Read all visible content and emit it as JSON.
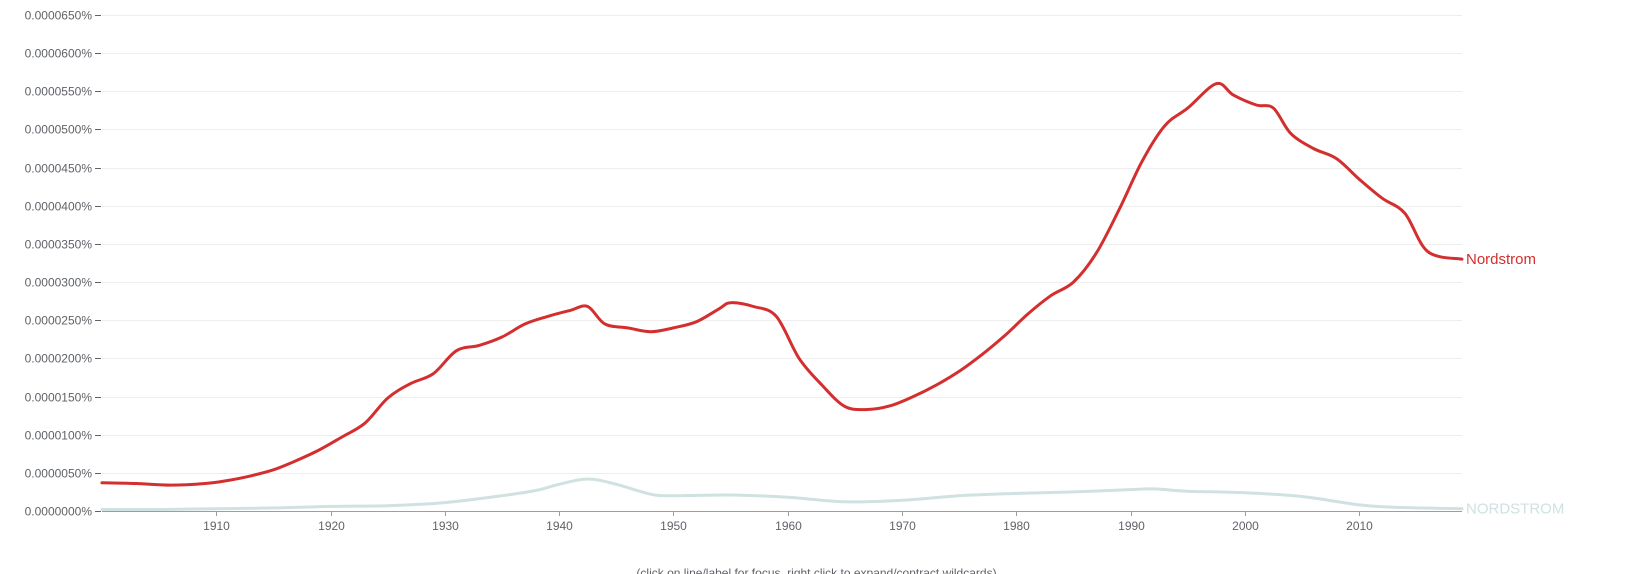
{
  "chart_data": {
    "type": "line",
    "title": "",
    "xlabel": "",
    "ylabel": "",
    "xlim": [
      1900,
      2019
    ],
    "ylim": [
      0,
      6.5e-05
    ],
    "y_ticks": [
      "0.0000000%",
      "0.0000050%",
      "0.0000100%",
      "0.0000150%",
      "0.0000200%",
      "0.0000250%",
      "0.0000300%",
      "0.0000350%",
      "0.0000400%",
      "0.0000450%",
      "0.0000500%",
      "0.0000550%",
      "0.0000600%",
      "0.0000650%"
    ],
    "y_tick_values": [
      0,
      5e-06,
      1e-05,
      1.5e-05,
      2e-05,
      2.5e-05,
      3e-05,
      3.5e-05,
      4e-05,
      4.5e-05,
      5e-05,
      5.5e-05,
      6e-05,
      6.5e-05
    ],
    "x_ticks": [
      "1910",
      "1920",
      "1930",
      "1940",
      "1950",
      "1960",
      "1970",
      "1980",
      "1990",
      "2000",
      "2010"
    ],
    "x_tick_values": [
      1910,
      1920,
      1930,
      1940,
      1950,
      1960,
      1970,
      1980,
      1990,
      2000,
      2010
    ],
    "grid": true,
    "series": [
      {
        "name": "Nordstrom",
        "color": "#d32f2f",
        "x": [
          1900,
          1903,
          1906,
          1909,
          1911,
          1913,
          1915,
          1917,
          1919,
          1921,
          1923,
          1925,
          1927,
          1929,
          1931,
          1933,
          1935,
          1937,
          1939,
          1941,
          1942.5,
          1944,
          1946,
          1948,
          1950,
          1952,
          1954,
          1955,
          1957,
          1959,
          1961,
          1963,
          1965,
          1967,
          1969,
          1971,
          1973,
          1975,
          1977,
          1979,
          1981,
          1983,
          1985,
          1987,
          1989,
          1991,
          1993,
          1995,
          1997.5,
          1999,
          2001,
          2002.5,
          2004,
          2006,
          2008,
          2010,
          2012,
          2014,
          2016,
          2019
        ],
        "values": [
          3.7e-06,
          3.6e-06,
          3.4e-06,
          3.6e-06,
          4e-06,
          4.6e-06,
          5.4e-06,
          6.6e-06,
          8e-06,
          9.7e-06,
          1.15e-05,
          1.48e-05,
          1.67e-05,
          1.8e-05,
          2.1e-05,
          2.17e-05,
          2.28e-05,
          2.45e-05,
          2.55e-05,
          2.63e-05,
          2.68e-05,
          2.45e-05,
          2.4e-05,
          2.35e-05,
          2.4e-05,
          2.48e-05,
          2.65e-05,
          2.73e-05,
          2.68e-05,
          2.55e-05,
          2e-05,
          1.65e-05,
          1.37e-05,
          1.33e-05,
          1.38e-05,
          1.5e-05,
          1.65e-05,
          1.83e-05,
          2.05e-05,
          2.3e-05,
          2.58e-05,
          2.82e-05,
          3e-05,
          3.38e-05,
          3.95e-05,
          4.58e-05,
          5.05e-05,
          5.28e-05,
          5.6e-05,
          5.45e-05,
          5.32e-05,
          5.28e-05,
          4.95e-05,
          4.75e-05,
          4.62e-05,
          4.35e-05,
          4.1e-05,
          3.9e-05,
          3.4e-05,
          3.3e-05
        ]
      },
      {
        "name": "NORDSTROM",
        "color": "#cfe1e0",
        "x": [
          1900,
          1905,
          1910,
          1915,
          1920,
          1925,
          1930,
          1935,
          1938,
          1940,
          1942.5,
          1945,
          1948,
          1950,
          1955,
          1960,
          1965,
          1970,
          1975,
          1980,
          1985,
          1990,
          1992,
          1995,
          2000,
          2005,
          2010,
          2013,
          2019
        ],
        "values": [
          2e-07,
          2e-07,
          3e-07,
          4e-07,
          6e-07,
          7e-07,
          1.1e-06,
          2e-06,
          2.7e-06,
          3.5e-06,
          4.2e-06,
          3.5e-06,
          2.2e-06,
          2e-06,
          2.1e-06,
          1.8e-06,
          1.2e-06,
          1.4e-06,
          2e-06,
          2.3e-06,
          2.5e-06,
          2.8e-06,
          2.9e-06,
          2.6e-06,
          2.4e-06,
          1.9e-06,
          8e-07,
          5e-07,
          3e-07
        ]
      }
    ]
  },
  "footer_text": "(click on line/label for focus, right click to expand/contract wildcards)"
}
